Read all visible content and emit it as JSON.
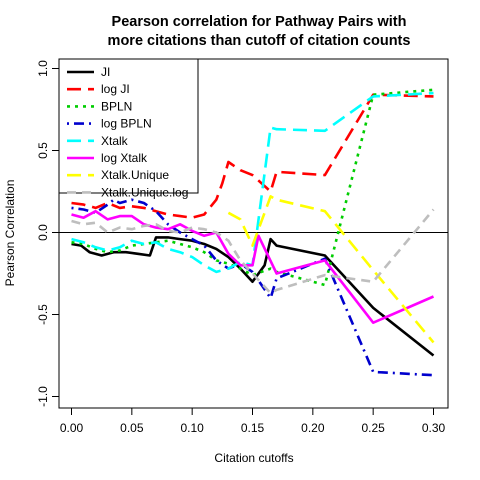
{
  "chart_data": {
    "type": "line",
    "title_line1": "Pearson correlation for Pathway Pairs with",
    "title_line2": "more citations than cutoff of citation counts",
    "xlabel": "Citation cutoffs",
    "ylabel": "Pearson Correlation",
    "xlim": [
      -0.01,
      0.31
    ],
    "ylim": [
      -1.05,
      1.05
    ],
    "x_ticks": [
      0.0,
      0.05,
      0.1,
      0.15,
      0.2,
      0.25,
      0.3
    ],
    "x_tick_labels": [
      "0.00",
      "0.05",
      "0.10",
      "0.15",
      "0.20",
      "0.25",
      "0.30"
    ],
    "y_ticks": [
      -1.0,
      -0.5,
      0.0,
      0.5,
      1.0
    ],
    "y_tick_labels": [
      "-1.0",
      "-0.5",
      "0.0",
      "0.5",
      "1.0"
    ],
    "reference_line_y": 0.0,
    "legend_position": "top-left",
    "series": [
      {
        "name": "JI",
        "color": "#000000",
        "dash": "solid",
        "width": 2.6,
        "points": [
          [
            0.0,
            -0.07
          ],
          [
            0.008,
            -0.08
          ],
          [
            0.015,
            -0.12
          ],
          [
            0.025,
            -0.14
          ],
          [
            0.035,
            -0.12
          ],
          [
            0.045,
            -0.12
          ],
          [
            0.055,
            -0.13
          ],
          [
            0.065,
            -0.14
          ],
          [
            0.07,
            -0.03
          ],
          [
            0.08,
            -0.03
          ],
          [
            0.09,
            -0.04
          ],
          [
            0.1,
            -0.05
          ],
          [
            0.11,
            -0.07
          ],
          [
            0.12,
            -0.1
          ],
          [
            0.13,
            -0.15
          ],
          [
            0.14,
            -0.22
          ],
          [
            0.15,
            -0.3
          ],
          [
            0.16,
            -0.2
          ],
          [
            0.165,
            -0.04
          ],
          [
            0.17,
            -0.08
          ],
          [
            0.21,
            -0.14
          ],
          [
            0.25,
            -0.46
          ],
          [
            0.3,
            -0.75
          ]
        ]
      },
      {
        "name": "log JI",
        "color": "#ff0000",
        "dash": "longdash",
        "width": 2.6,
        "points": [
          [
            0.0,
            0.18
          ],
          [
            0.01,
            0.17
          ],
          [
            0.02,
            0.15
          ],
          [
            0.03,
            0.18
          ],
          [
            0.04,
            0.15
          ],
          [
            0.05,
            0.16
          ],
          [
            0.06,
            0.15
          ],
          [
            0.07,
            0.13
          ],
          [
            0.08,
            0.11
          ],
          [
            0.09,
            0.1
          ],
          [
            0.1,
            0.09
          ],
          [
            0.11,
            0.11
          ],
          [
            0.12,
            0.2
          ],
          [
            0.125,
            0.3
          ],
          [
            0.13,
            0.43
          ],
          [
            0.14,
            0.38
          ],
          [
            0.15,
            0.35
          ],
          [
            0.165,
            0.25
          ],
          [
            0.17,
            0.37
          ],
          [
            0.21,
            0.35
          ],
          [
            0.25,
            0.84
          ],
          [
            0.3,
            0.83
          ]
        ]
      },
      {
        "name": "BPLN",
        "color": "#00cd00",
        "dash": "dotted",
        "width": 2.6,
        "points": [
          [
            0.0,
            -0.06
          ],
          [
            0.01,
            -0.07
          ],
          [
            0.02,
            -0.1
          ],
          [
            0.03,
            -0.12
          ],
          [
            0.04,
            -0.11
          ],
          [
            0.05,
            -0.08
          ],
          [
            0.06,
            -0.07
          ],
          [
            0.07,
            -0.06
          ],
          [
            0.08,
            -0.05
          ],
          [
            0.09,
            -0.07
          ],
          [
            0.1,
            -0.09
          ],
          [
            0.11,
            -0.12
          ],
          [
            0.12,
            -0.17
          ],
          [
            0.13,
            -0.19
          ],
          [
            0.14,
            -0.22
          ],
          [
            0.15,
            -0.26
          ],
          [
            0.165,
            -0.22
          ],
          [
            0.17,
            -0.24
          ],
          [
            0.21,
            -0.32
          ],
          [
            0.25,
            0.84
          ],
          [
            0.3,
            0.87
          ]
        ]
      },
      {
        "name": "log BPLN",
        "color": "#0000cd",
        "dash": "dotdash",
        "width": 2.6,
        "points": [
          [
            0.0,
            0.15
          ],
          [
            0.01,
            0.14
          ],
          [
            0.02,
            0.12
          ],
          [
            0.03,
            0.17
          ],
          [
            0.035,
            0.2
          ],
          [
            0.04,
            0.18
          ],
          [
            0.05,
            0.2
          ],
          [
            0.06,
            0.18
          ],
          [
            0.07,
            0.13
          ],
          [
            0.08,
            0.05
          ],
          [
            0.09,
            0.0
          ],
          [
            0.1,
            -0.04
          ],
          [
            0.11,
            -0.08
          ],
          [
            0.12,
            -0.17
          ],
          [
            0.13,
            -0.22
          ],
          [
            0.14,
            -0.19
          ],
          [
            0.15,
            -0.24
          ],
          [
            0.165,
            -0.4
          ],
          [
            0.17,
            -0.28
          ],
          [
            0.21,
            -0.16
          ],
          [
            0.25,
            -0.85
          ],
          [
            0.3,
            -0.87
          ]
        ]
      },
      {
        "name": "Xtalk",
        "color": "#00ffff",
        "dash": "longdash",
        "width": 2.6,
        "points": [
          [
            0.0,
            -0.04
          ],
          [
            0.01,
            -0.06
          ],
          [
            0.02,
            -0.09
          ],
          [
            0.03,
            -0.11
          ],
          [
            0.04,
            -0.09
          ],
          [
            0.05,
            -0.05
          ],
          [
            0.06,
            -0.07
          ],
          [
            0.07,
            -0.06
          ],
          [
            0.08,
            -0.1
          ],
          [
            0.09,
            -0.12
          ],
          [
            0.1,
            -0.15
          ],
          [
            0.11,
            -0.2
          ],
          [
            0.12,
            -0.24
          ],
          [
            0.13,
            -0.22
          ],
          [
            0.14,
            -0.18
          ],
          [
            0.15,
            -0.2
          ],
          [
            0.165,
            0.64
          ],
          [
            0.17,
            0.63
          ],
          [
            0.21,
            0.62
          ],
          [
            0.25,
            0.83
          ],
          [
            0.3,
            0.85
          ]
        ]
      },
      {
        "name": "log Xtalk",
        "color": "#ff00ff",
        "dash": "solid",
        "width": 2.6,
        "points": [
          [
            0.0,
            0.11
          ],
          [
            0.01,
            0.09
          ],
          [
            0.02,
            0.13
          ],
          [
            0.03,
            0.08
          ],
          [
            0.04,
            0.1
          ],
          [
            0.05,
            0.1
          ],
          [
            0.06,
            0.05
          ],
          [
            0.07,
            0.03
          ],
          [
            0.08,
            0.02
          ],
          [
            0.09,
            0.05
          ],
          [
            0.1,
            0.01
          ],
          [
            0.11,
            -0.02
          ],
          [
            0.12,
            0.0
          ],
          [
            0.13,
            -0.13
          ],
          [
            0.14,
            -0.2
          ],
          [
            0.15,
            -0.2
          ],
          [
            0.155,
            -0.02
          ],
          [
            0.17,
            -0.25
          ],
          [
            0.21,
            -0.17
          ],
          [
            0.25,
            -0.55
          ],
          [
            0.3,
            -0.39
          ]
        ]
      },
      {
        "name": "Xtalk.Unique",
        "color": "#ffff00",
        "dash": "longdash",
        "width": 2.6,
        "points": [
          [
            0.13,
            0.12
          ],
          [
            0.14,
            0.08
          ],
          [
            0.15,
            -0.08
          ],
          [
            0.165,
            0.22
          ],
          [
            0.17,
            0.2
          ],
          [
            0.21,
            0.13
          ],
          [
            0.25,
            -0.23
          ],
          [
            0.3,
            -0.67
          ]
        ]
      },
      {
        "name": "Xtalk.Unique.log",
        "color": "#bebebe",
        "dash": "dashed",
        "width": 2.6,
        "points": [
          [
            0.0,
            0.07
          ],
          [
            0.01,
            0.05
          ],
          [
            0.02,
            0.06
          ],
          [
            0.03,
            0.0
          ],
          [
            0.04,
            0.03
          ],
          [
            0.05,
            0.02
          ],
          [
            0.06,
            0.04
          ],
          [
            0.07,
            0.05
          ],
          [
            0.08,
            0.01
          ],
          [
            0.09,
            0.0
          ],
          [
            0.1,
            0.03
          ],
          [
            0.11,
            0.02
          ],
          [
            0.12,
            0.0
          ],
          [
            0.13,
            -0.05
          ],
          [
            0.14,
            -0.17
          ],
          [
            0.15,
            -0.25
          ],
          [
            0.165,
            -0.37
          ],
          [
            0.17,
            -0.35
          ],
          [
            0.21,
            -0.26
          ],
          [
            0.25,
            -0.3
          ],
          [
            0.3,
            0.14
          ]
        ]
      }
    ]
  }
}
